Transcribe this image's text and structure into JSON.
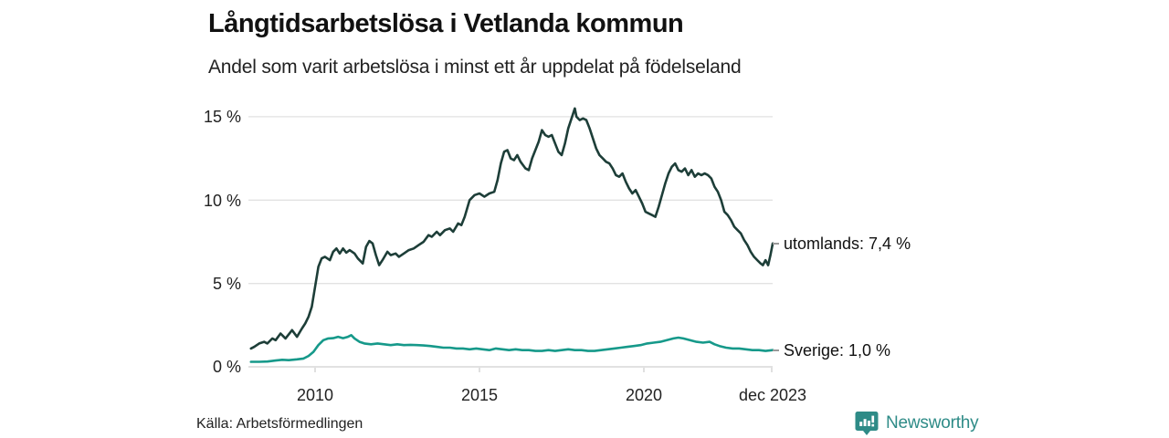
{
  "header": {
    "title": "Långtidsarbetslösa i Vetlanda kommun",
    "subtitle": "Andel som varit arbetslösa i minst ett år uppdelat på födelseland"
  },
  "chart_data": {
    "type": "line",
    "title": "Långtidsarbetslösa i Vetlanda kommun",
    "subtitle": "Andel som varit arbetslösa i minst ett år uppdelat på födelseland",
    "xlabel": "",
    "ylabel": "",
    "grid": true,
    "legend_position": "end-of-line",
    "x_axis": {
      "range": [
        2007.97,
        2023.95
      ],
      "ticks": [
        {
          "pos": 2010,
          "label": "2010"
        },
        {
          "pos": 2015,
          "label": "2015"
        },
        {
          "pos": 2020,
          "label": "2020"
        },
        {
          "pos": 2023.92,
          "label": "dec 2023"
        }
      ]
    },
    "y_axis": {
      "range": [
        0,
        15.9
      ],
      "unit": "%",
      "ticks": [
        {
          "value": 0,
          "label": "0 %"
        },
        {
          "value": 5,
          "label": "5 %"
        },
        {
          "value": 10,
          "label": "10 %"
        },
        {
          "value": 15,
          "label": "15 %"
        }
      ]
    },
    "series": [
      {
        "name": "utomlands",
        "color": "#1d3e38",
        "end_label": "utomlands: 7,4 %",
        "last_value_label": "7,4 %",
        "points": [
          [
            2008.05,
            1.1
          ],
          [
            2008.15,
            1.2
          ],
          [
            2008.3,
            1.4
          ],
          [
            2008.45,
            1.5
          ],
          [
            2008.55,
            1.4
          ],
          [
            2008.7,
            1.7
          ],
          [
            2008.8,
            1.6
          ],
          [
            2008.95,
            2.0
          ],
          [
            2009.1,
            1.7
          ],
          [
            2009.3,
            2.2
          ],
          [
            2009.45,
            1.8
          ],
          [
            2009.6,
            2.3
          ],
          [
            2009.7,
            2.6
          ],
          [
            2009.8,
            3.0
          ],
          [
            2009.9,
            3.6
          ],
          [
            2010.0,
            4.8
          ],
          [
            2010.1,
            6.0
          ],
          [
            2010.2,
            6.5
          ],
          [
            2010.3,
            6.6
          ],
          [
            2010.45,
            6.4
          ],
          [
            2010.55,
            6.9
          ],
          [
            2010.65,
            7.1
          ],
          [
            2010.75,
            6.8
          ],
          [
            2010.85,
            7.1
          ],
          [
            2010.95,
            6.85
          ],
          [
            2011.05,
            7.0
          ],
          [
            2011.2,
            6.8
          ],
          [
            2011.3,
            6.5
          ],
          [
            2011.45,
            6.2
          ],
          [
            2011.55,
            7.2
          ],
          [
            2011.65,
            7.55
          ],
          [
            2011.75,
            7.4
          ],
          [
            2011.85,
            6.7
          ],
          [
            2011.95,
            6.1
          ],
          [
            2012.05,
            6.4
          ],
          [
            2012.2,
            6.9
          ],
          [
            2012.3,
            6.7
          ],
          [
            2012.45,
            6.8
          ],
          [
            2012.55,
            6.6
          ],
          [
            2012.7,
            6.8
          ],
          [
            2012.85,
            7.0
          ],
          [
            2013.0,
            7.1
          ],
          [
            2013.15,
            7.3
          ],
          [
            2013.3,
            7.5
          ],
          [
            2013.45,
            7.9
          ],
          [
            2013.55,
            7.8
          ],
          [
            2013.7,
            8.1
          ],
          [
            2013.8,
            7.9
          ],
          [
            2013.95,
            8.2
          ],
          [
            2014.1,
            8.3
          ],
          [
            2014.2,
            8.1
          ],
          [
            2014.35,
            8.6
          ],
          [
            2014.45,
            8.5
          ],
          [
            2014.55,
            9.0
          ],
          [
            2014.7,
            10.0
          ],
          [
            2014.85,
            10.3
          ],
          [
            2015.0,
            10.4
          ],
          [
            2015.15,
            10.2
          ],
          [
            2015.3,
            10.4
          ],
          [
            2015.45,
            10.5
          ],
          [
            2015.55,
            11.2
          ],
          [
            2015.65,
            12.2
          ],
          [
            2015.75,
            12.9
          ],
          [
            2015.85,
            13.0
          ],
          [
            2015.95,
            12.5
          ],
          [
            2016.05,
            12.4
          ],
          [
            2016.15,
            12.7
          ],
          [
            2016.25,
            12.3
          ],
          [
            2016.4,
            11.9
          ],
          [
            2016.5,
            11.8
          ],
          [
            2016.6,
            12.5
          ],
          [
            2016.7,
            13.0
          ],
          [
            2016.8,
            13.5
          ],
          [
            2016.9,
            14.2
          ],
          [
            2017.0,
            13.9
          ],
          [
            2017.1,
            13.8
          ],
          [
            2017.2,
            13.9
          ],
          [
            2017.3,
            13.4
          ],
          [
            2017.4,
            12.9
          ],
          [
            2017.5,
            12.7
          ],
          [
            2017.6,
            13.4
          ],
          [
            2017.7,
            14.3
          ],
          [
            2017.8,
            14.9
          ],
          [
            2017.9,
            15.5
          ],
          [
            2017.95,
            15.0
          ],
          [
            2018.05,
            14.8
          ],
          [
            2018.15,
            14.9
          ],
          [
            2018.25,
            14.8
          ],
          [
            2018.35,
            14.3
          ],
          [
            2018.45,
            13.7
          ],
          [
            2018.55,
            13.1
          ],
          [
            2018.65,
            12.7
          ],
          [
            2018.75,
            12.5
          ],
          [
            2018.85,
            12.3
          ],
          [
            2018.95,
            12.2
          ],
          [
            2019.05,
            11.9
          ],
          [
            2019.15,
            11.5
          ],
          [
            2019.25,
            11.4
          ],
          [
            2019.35,
            11.6
          ],
          [
            2019.45,
            11.1
          ],
          [
            2019.55,
            10.7
          ],
          [
            2019.65,
            10.4
          ],
          [
            2019.75,
            10.6
          ],
          [
            2019.85,
            10.2
          ],
          [
            2019.95,
            9.8
          ],
          [
            2020.05,
            9.3
          ],
          [
            2020.15,
            9.2
          ],
          [
            2020.25,
            9.1
          ],
          [
            2020.35,
            9.0
          ],
          [
            2020.45,
            9.6
          ],
          [
            2020.55,
            10.3
          ],
          [
            2020.65,
            11.0
          ],
          [
            2020.75,
            11.6
          ],
          [
            2020.85,
            12.0
          ],
          [
            2020.95,
            12.2
          ],
          [
            2021.05,
            11.8
          ],
          [
            2021.15,
            11.7
          ],
          [
            2021.25,
            11.9
          ],
          [
            2021.35,
            11.5
          ],
          [
            2021.45,
            11.8
          ],
          [
            2021.55,
            11.4
          ],
          [
            2021.65,
            11.6
          ],
          [
            2021.75,
            11.5
          ],
          [
            2021.85,
            11.6
          ],
          [
            2021.95,
            11.5
          ],
          [
            2022.05,
            11.3
          ],
          [
            2022.15,
            10.8
          ],
          [
            2022.25,
            10.5
          ],
          [
            2022.35,
            10.0
          ],
          [
            2022.45,
            9.3
          ],
          [
            2022.55,
            9.1
          ],
          [
            2022.65,
            8.8
          ],
          [
            2022.75,
            8.4
          ],
          [
            2022.85,
            8.2
          ],
          [
            2022.95,
            8.0
          ],
          [
            2023.05,
            7.6
          ],
          [
            2023.15,
            7.3
          ],
          [
            2023.25,
            6.9
          ],
          [
            2023.35,
            6.6
          ],
          [
            2023.45,
            6.4
          ],
          [
            2023.55,
            6.2
          ],
          [
            2023.62,
            6.1
          ],
          [
            2023.7,
            6.4
          ],
          [
            2023.78,
            6.1
          ],
          [
            2023.85,
            6.7
          ],
          [
            2023.92,
            7.4
          ]
        ]
      },
      {
        "name": "Sverige",
        "color": "#16998a",
        "end_label": "Sverige: 1,0 %",
        "last_value_label": "1,0 %",
        "points": [
          [
            2008.05,
            0.3
          ],
          [
            2008.3,
            0.3
          ],
          [
            2008.55,
            0.32
          ],
          [
            2008.8,
            0.38
          ],
          [
            2009.0,
            0.42
          ],
          [
            2009.2,
            0.4
          ],
          [
            2009.45,
            0.45
          ],
          [
            2009.65,
            0.5
          ],
          [
            2009.8,
            0.65
          ],
          [
            2009.95,
            0.9
          ],
          [
            2010.1,
            1.3
          ],
          [
            2010.25,
            1.6
          ],
          [
            2010.4,
            1.7
          ],
          [
            2010.55,
            1.72
          ],
          [
            2010.7,
            1.8
          ],
          [
            2010.85,
            1.72
          ],
          [
            2011.0,
            1.8
          ],
          [
            2011.1,
            1.9
          ],
          [
            2011.2,
            1.7
          ],
          [
            2011.35,
            1.5
          ],
          [
            2011.5,
            1.4
          ],
          [
            2011.7,
            1.35
          ],
          [
            2011.9,
            1.4
          ],
          [
            2012.1,
            1.35
          ],
          [
            2012.3,
            1.3
          ],
          [
            2012.5,
            1.35
          ],
          [
            2012.7,
            1.3
          ],
          [
            2012.9,
            1.32
          ],
          [
            2013.1,
            1.3
          ],
          [
            2013.3,
            1.28
          ],
          [
            2013.5,
            1.25
          ],
          [
            2013.7,
            1.2
          ],
          [
            2013.9,
            1.15
          ],
          [
            2014.1,
            1.15
          ],
          [
            2014.3,
            1.1
          ],
          [
            2014.5,
            1.1
          ],
          [
            2014.7,
            1.05
          ],
          [
            2014.9,
            1.1
          ],
          [
            2015.1,
            1.05
          ],
          [
            2015.3,
            1.0
          ],
          [
            2015.5,
            1.1
          ],
          [
            2015.7,
            1.05
          ],
          [
            2015.9,
            1.0
          ],
          [
            2016.1,
            1.05
          ],
          [
            2016.3,
            1.0
          ],
          [
            2016.5,
            1.0
          ],
          [
            2016.7,
            0.95
          ],
          [
            2016.9,
            0.95
          ],
          [
            2017.1,
            1.0
          ],
          [
            2017.3,
            0.95
          ],
          [
            2017.5,
            1.0
          ],
          [
            2017.7,
            1.05
          ],
          [
            2017.9,
            1.0
          ],
          [
            2018.1,
            1.0
          ],
          [
            2018.3,
            0.95
          ],
          [
            2018.5,
            0.95
          ],
          [
            2018.7,
            1.0
          ],
          [
            2018.9,
            1.05
          ],
          [
            2019.1,
            1.1
          ],
          [
            2019.3,
            1.15
          ],
          [
            2019.5,
            1.2
          ],
          [
            2019.7,
            1.25
          ],
          [
            2019.9,
            1.3
          ],
          [
            2020.1,
            1.4
          ],
          [
            2020.3,
            1.45
          ],
          [
            2020.5,
            1.5
          ],
          [
            2020.7,
            1.6
          ],
          [
            2020.9,
            1.7
          ],
          [
            2021.05,
            1.75
          ],
          [
            2021.2,
            1.7
          ],
          [
            2021.4,
            1.6
          ],
          [
            2021.6,
            1.5
          ],
          [
            2021.8,
            1.45
          ],
          [
            2022.0,
            1.5
          ],
          [
            2022.15,
            1.35
          ],
          [
            2022.3,
            1.25
          ],
          [
            2022.5,
            1.15
          ],
          [
            2022.7,
            1.1
          ],
          [
            2022.9,
            1.1
          ],
          [
            2023.1,
            1.05
          ],
          [
            2023.3,
            1.0
          ],
          [
            2023.5,
            1.0
          ],
          [
            2023.7,
            0.95
          ],
          [
            2023.92,
            1.0
          ]
        ]
      }
    ],
    "colors": {
      "grid": "#e2e2e2",
      "zero_line": "#cfcfcf",
      "utomlands_line": "#1d3e38",
      "sverige_line": "#16998a",
      "brand_teal": "#2e8b87"
    }
  },
  "footer": {
    "source": "Källa: Arbetsförmedlingen",
    "brand": "Newsworthy"
  }
}
